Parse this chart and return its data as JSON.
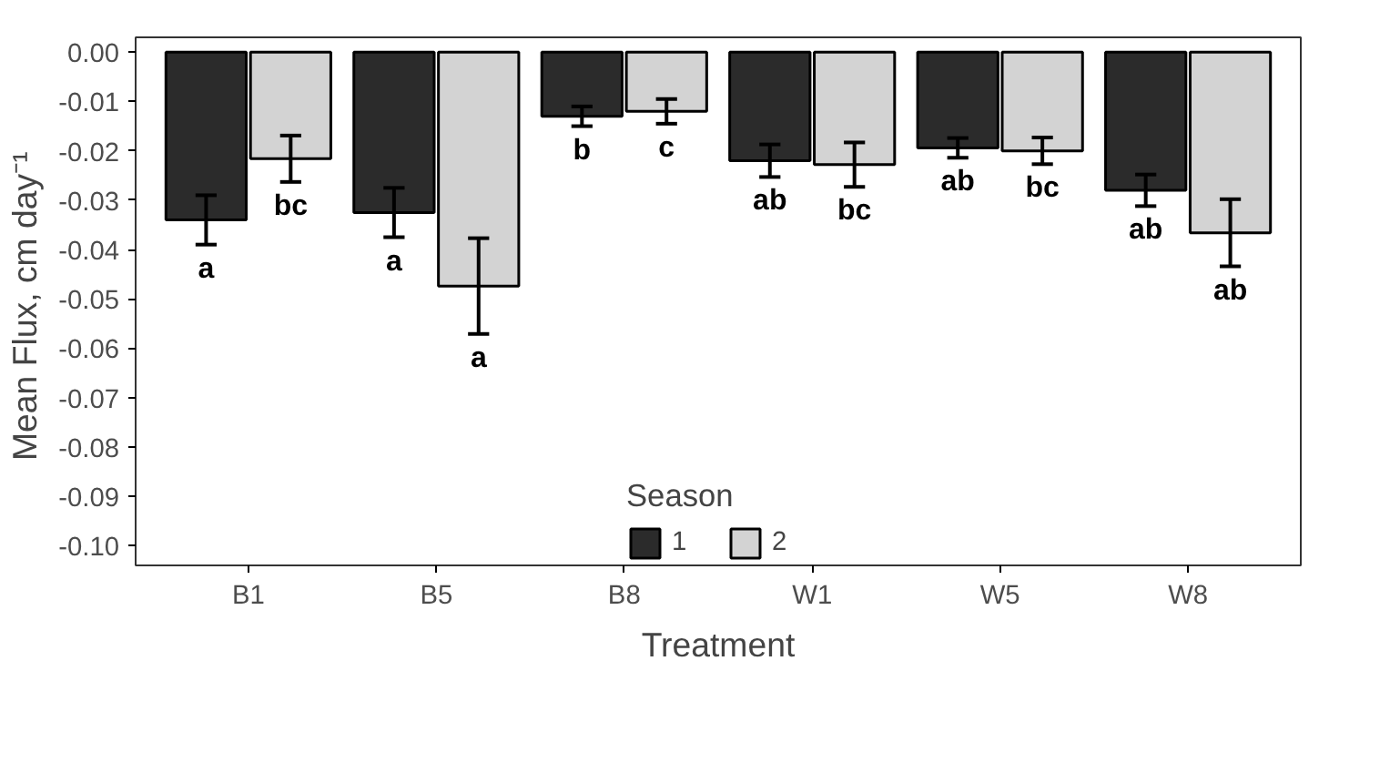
{
  "chart_data": {
    "type": "bar",
    "xlabel": "Treatment",
    "ylabel": "Mean Flux,  cm day⁻¹",
    "legend_title": "Season",
    "legend": "bottom",
    "categories": [
      "B1",
      "B5",
      "B8",
      "W1",
      "W5",
      "W8"
    ],
    "series": [
      {
        "name": "1",
        "color": "#2b2b2b",
        "values": [
          -0.034,
          -0.0325,
          -0.013,
          -0.022,
          -0.0194,
          -0.028
        ],
        "errors": [
          0.005,
          0.005,
          0.002,
          0.0033,
          0.002,
          0.0032
        ],
        "value_labels": [
          "a",
          "a",
          "b",
          "ab",
          "ab",
          "ab"
        ]
      },
      {
        "name": "2",
        "color": "#d3d3d3",
        "values": [
          -0.0216,
          -0.0474,
          -0.012,
          -0.0228,
          -0.02,
          -0.0366
        ],
        "errors": [
          0.0047,
          0.0097,
          0.0025,
          0.0045,
          0.0027,
          0.0068
        ],
        "value_labels": [
          "bc",
          "a",
          "c",
          "bc",
          "bc",
          "ab"
        ]
      }
    ],
    "ylim": [
      -0.104,
      0.003
    ],
    "yticks": [
      {
        "value": 0,
        "label": "0.00"
      },
      {
        "value": -0.01,
        "label": "-0.01"
      },
      {
        "value": -0.02,
        "label": "-0.02"
      },
      {
        "value": -0.03,
        "label": "-0.03"
      },
      {
        "value": -0.04,
        "label": "-0.04"
      },
      {
        "value": -0.05,
        "label": "-0.05"
      },
      {
        "value": -0.06,
        "label": "-0.06"
      },
      {
        "value": -0.07,
        "label": "-0.07"
      },
      {
        "value": -0.08,
        "label": "-0.08"
      },
      {
        "value": -0.09,
        "label": "-0.09"
      },
      {
        "value": -0.1,
        "label": "-0.10"
      }
    ],
    "grid": false
  }
}
